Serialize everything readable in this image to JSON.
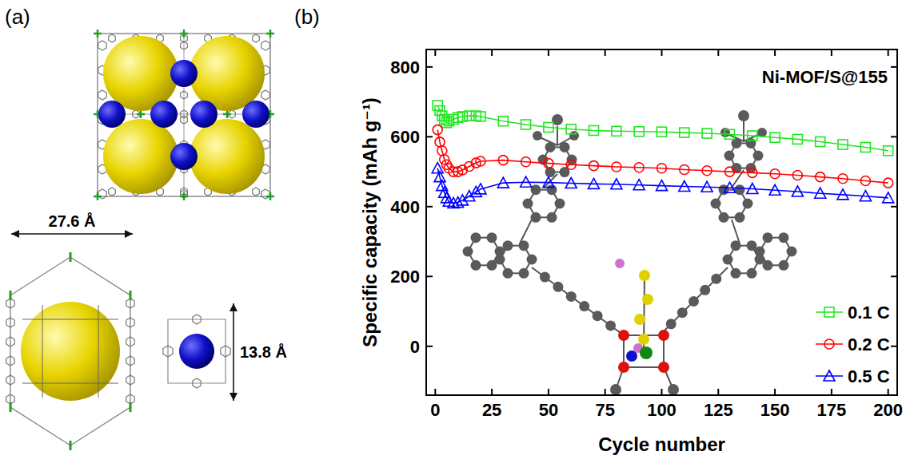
{
  "panel_labels": {
    "a": "(a)",
    "b": "(b)"
  },
  "diagram": {
    "width_label": "27.6 Å",
    "height_label": "13.8 Å"
  },
  "chart_data": {
    "type": "line",
    "title": "Ni-MOF/S@155",
    "x_label": "Cycle number",
    "y_label": "Specific capacity (mAh g⁻¹)",
    "x": [
      1,
      2,
      3,
      4,
      5,
      6,
      8,
      10,
      12,
      15,
      18,
      20,
      30,
      40,
      50,
      60,
      70,
      80,
      90,
      100,
      110,
      120,
      130,
      140,
      150,
      160,
      170,
      180,
      190,
      200
    ],
    "series": [
      {
        "name": "0.1 C",
        "color": "#22e622",
        "marker": "square",
        "line_style": "solid",
        "values": [
          690,
          675,
          660,
          650,
          640,
          645,
          650,
          655,
          658,
          660,
          660,
          658,
          645,
          635,
          627,
          622,
          618,
          616,
          615,
          614,
          612,
          610,
          607,
          603,
          598,
          593,
          586,
          578,
          570,
          560
        ]
      },
      {
        "name": "0.2 C",
        "color": "#ff0000",
        "marker": "circle",
        "line_style": "solid",
        "values": [
          620,
          585,
          560,
          535,
          520,
          510,
          500,
          500,
          505,
          515,
          525,
          530,
          533,
          528,
          524,
          520,
          517,
          514,
          512,
          510,
          506,
          503,
          500,
          497,
          494,
          490,
          485,
          480,
          474,
          468
        ]
      },
      {
        "name": "0.5 C",
        "color": "#0000ff",
        "marker": "triangle",
        "line_style": "solid",
        "values": [
          510,
          485,
          460,
          440,
          425,
          415,
          410,
          412,
          418,
          430,
          442,
          450,
          468,
          470,
          469,
          467,
          465,
          464,
          462,
          460,
          458,
          456,
          454,
          451,
          447,
          443,
          438,
          434,
          430,
          425
        ]
      }
    ],
    "xlim": [
      -4,
      204
    ],
    "xticks": [
      0,
      25,
      50,
      75,
      100,
      125,
      150,
      175,
      200
    ],
    "ylim": [
      -140,
      850
    ],
    "yticks": [
      0,
      200,
      400,
      600,
      800
    ],
    "grid": false,
    "legend": "lower right"
  }
}
